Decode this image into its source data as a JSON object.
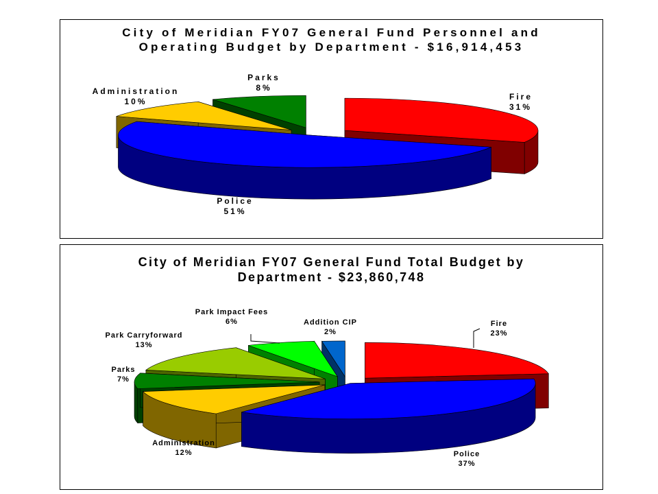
{
  "chart_data": [
    {
      "type": "pie",
      "title_lines": [
        "City of Meridian FY07 General Fund Personnel and",
        "Operating Budget by Department - $16,914,453"
      ],
      "series": [
        {
          "label": "Fire",
          "value": 31,
          "pct": "31%",
          "color": "#ff0000"
        },
        {
          "label": "Police",
          "value": 51,
          "pct": "51%",
          "color": "#0000ff"
        },
        {
          "label": "Administration",
          "value": 10,
          "pct": "10%",
          "color": "#ffcc00"
        },
        {
          "label": "Parks",
          "value": 8,
          "pct": "8%",
          "color": "#008000"
        }
      ],
      "exploded": true,
      "style": "3d"
    },
    {
      "type": "pie",
      "title_lines": [
        "City of Meridian FY07 General Fund Total Budget by",
        "Department - $23,860,748"
      ],
      "series": [
        {
          "label": "Fire",
          "value": 23,
          "pct": "23%",
          "color": "#ff0000"
        },
        {
          "label": "Police",
          "value": 37,
          "pct": "37%",
          "color": "#0000ff"
        },
        {
          "label": "Administration",
          "value": 12,
          "pct": "12%",
          "color": "#ffcc00"
        },
        {
          "label": "Parks",
          "value": 7,
          "pct": "7%",
          "color": "#008000"
        },
        {
          "label": "Park Carryforward",
          "value": 13,
          "pct": "13%",
          "color": "#99cc00"
        },
        {
          "label": "Park Impact Fees",
          "value": 6,
          "pct": "6%",
          "color": "#00ff00"
        },
        {
          "label": "Addition CIP",
          "value": 2,
          "pct": "2%",
          "color": "#0066cc"
        }
      ],
      "exploded": true,
      "style": "3d"
    }
  ]
}
